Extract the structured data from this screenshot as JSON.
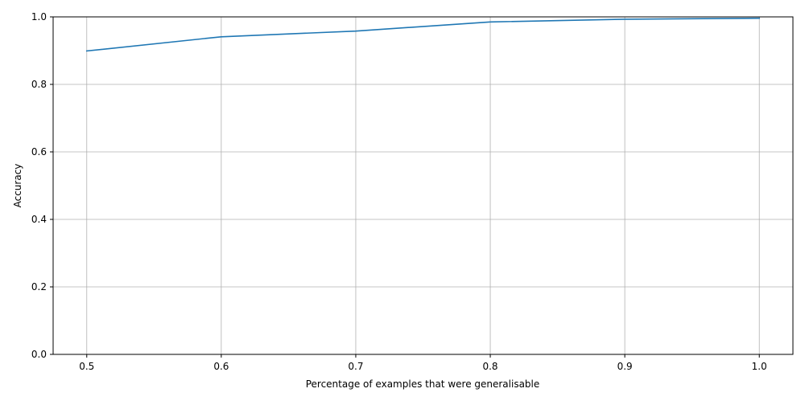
{
  "chart_data": {
    "type": "line",
    "title": "",
    "xlabel": "Percentage of examples that were generalisable",
    "ylabel": "Accuracy",
    "xlim": [
      0.475,
      1.025
    ],
    "ylim": [
      0.0,
      1.0
    ],
    "grid": true,
    "legend": "none",
    "x_ticks": [
      0.5,
      0.6,
      0.7,
      0.8,
      0.9,
      1.0
    ],
    "x_tick_labels": [
      "0.5",
      "0.6",
      "0.7",
      "0.8",
      "0.9",
      "1.0"
    ],
    "y_ticks": [
      0.0,
      0.2,
      0.4,
      0.6,
      0.8,
      1.0
    ],
    "y_tick_labels": [
      "0.0",
      "0.2",
      "0.4",
      "0.6",
      "0.8",
      "1.0"
    ],
    "series": [
      {
        "color": "#1f77b4",
        "x": [
          0.5,
          0.6,
          0.7,
          0.8,
          0.9,
          1.0
        ],
        "y": [
          0.899,
          0.941,
          0.958,
          0.985,
          0.993,
          0.996
        ]
      }
    ],
    "colors": {
      "grid": "#b0b0b0",
      "axes": "#000000"
    }
  }
}
